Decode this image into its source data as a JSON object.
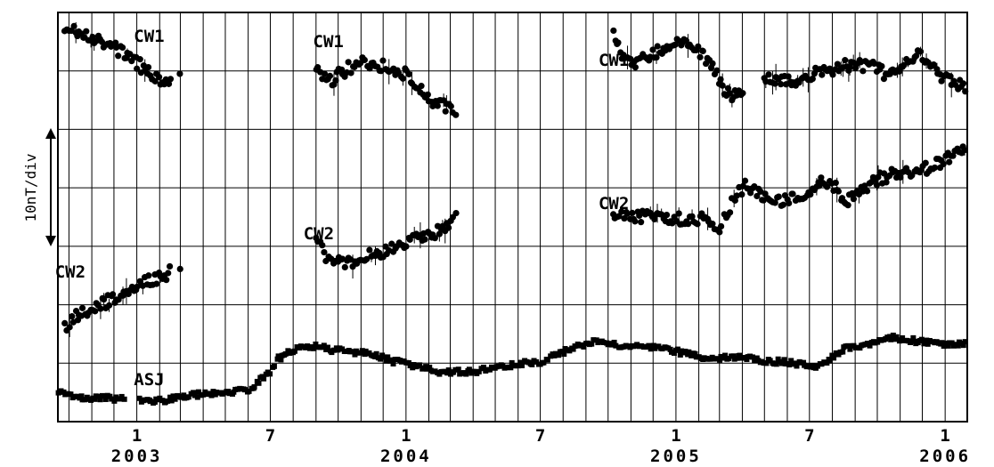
{
  "chart_data": {
    "type": "scatter",
    "ylabel": "10nT/div",
    "x_start": "2002-09-16",
    "x_end": "2006-01-31",
    "month_ticks": [
      {
        "label": "1",
        "year": "2003",
        "date": "2003-01-01"
      },
      {
        "label": "7",
        "year": "",
        "date": "2003-07-01"
      },
      {
        "label": "1",
        "year": "2004",
        "date": "2004-01-01"
      },
      {
        "label": "7",
        "year": "",
        "date": "2004-07-01"
      },
      {
        "label": "1",
        "year": "2005",
        "date": "2005-01-01"
      },
      {
        "label": "7",
        "year": "",
        "date": "2005-07-01"
      },
      {
        "label": "1",
        "year": "2006",
        "date": "2006-01-01"
      }
    ],
    "y_divisions": 7,
    "grid": true,
    "series": [
      {
        "name": "CW1",
        "segments": [
          [
            [
              "2002-09-26",
              29
            ],
            [
              "2002-10-10",
              34
            ],
            [
              "2002-10-25",
              38
            ],
            [
              "2002-11-10",
              45
            ],
            [
              "2002-11-25",
              50
            ],
            [
              "2002-12-10",
              57
            ],
            [
              "2002-12-25",
              66
            ],
            [
              "2003-01-10",
              77
            ],
            [
              "2003-01-25",
              85
            ],
            [
              "2003-02-05",
              91
            ],
            [
              "2003-02-15",
              93
            ]
          ],
          [
            [
              "2003-03-01",
              83
            ]
          ],
          [
            [
              "2003-09-01",
              72
            ],
            [
              "2003-09-15",
              94
            ],
            [
              "2003-09-30",
              86
            ],
            [
              "2003-10-15",
              76
            ],
            [
              "2003-11-01",
              72
            ],
            [
              "2003-11-15",
              70
            ],
            [
              "2003-12-01",
              74
            ],
            [
              "2003-12-15",
              78
            ],
            [
              "2003-12-30",
              84
            ],
            [
              "2004-01-15",
              96
            ],
            [
              "2004-01-30",
              110
            ],
            [
              "2004-02-15",
              117
            ],
            [
              "2004-02-28",
              122
            ],
            [
              "2004-03-08",
              126
            ]
          ],
          [
            [
              "2004-10-08",
              36
            ],
            [
              "2004-10-20",
              66
            ],
            [
              "2004-11-05",
              76
            ],
            [
              "2004-11-20",
              62
            ],
            [
              "2004-12-05",
              60
            ],
            [
              "2004-12-20",
              52
            ],
            [
              "2005-01-05",
              48
            ],
            [
              "2005-01-20",
              53
            ],
            [
              "2005-02-05",
              60
            ],
            [
              "2005-02-20",
              78
            ],
            [
              "2005-03-05",
              97
            ],
            [
              "2005-03-20",
              110
            ],
            [
              "2005-04-01",
              98
            ]
          ],
          [
            [
              "2005-05-01",
              86
            ],
            [
              "2005-05-20",
              92
            ],
            [
              "2005-06-10",
              90
            ],
            [
              "2005-06-30",
              85
            ],
            [
              "2005-07-20",
              80
            ],
            [
              "2005-08-10",
              76
            ],
            [
              "2005-08-30",
              72
            ],
            [
              "2005-09-20",
              74
            ],
            [
              "2005-10-10",
              82
            ],
            [
              "2005-10-30",
              78
            ],
            [
              "2005-11-15",
              68
            ],
            [
              "2005-12-01",
              61
            ],
            [
              "2005-12-20",
              82
            ],
            [
              "2006-01-10",
              94
            ],
            [
              "2006-01-28",
              98
            ]
          ]
        ]
      },
      {
        "name": "CW2",
        "segments": [
          [
            [
              "2002-09-26",
              368
            ],
            [
              "2002-10-10",
              356
            ],
            [
              "2002-10-25",
              350
            ],
            [
              "2002-11-10",
              345
            ],
            [
              "2002-11-25",
              337
            ],
            [
              "2002-12-10",
              330
            ],
            [
              "2002-12-25",
              325
            ],
            [
              "2003-01-10",
              319
            ],
            [
              "2003-01-25",
              313
            ],
            [
              "2003-02-05",
              310
            ],
            [
              "2003-02-15",
              306
            ]
          ],
          [
            [
              "2003-03-01",
              304
            ]
          ],
          [
            [
              "2003-09-01",
              262
            ],
            [
              "2003-09-15",
              289
            ],
            [
              "2003-09-30",
              295
            ],
            [
              "2003-10-15",
              294
            ],
            [
              "2003-11-01",
              291
            ],
            [
              "2003-11-15",
              287
            ],
            [
              "2003-12-01",
              283
            ],
            [
              "2003-12-15",
              279
            ],
            [
              "2003-12-30",
              273
            ],
            [
              "2004-01-15",
              270
            ],
            [
              "2004-01-30",
              265
            ],
            [
              "2004-02-15",
              260
            ],
            [
              "2004-02-28",
              252
            ],
            [
              "2004-03-08",
              245
            ]
          ],
          [
            [
              "2004-10-08",
              239
            ],
            [
              "2004-10-25",
              241
            ],
            [
              "2004-11-15",
              243
            ],
            [
              "2004-12-05",
              245
            ],
            [
              "2004-12-25",
              246
            ],
            [
              "2005-01-15",
              247
            ],
            [
              "2005-02-05",
              245
            ],
            [
              "2005-02-20",
              249
            ],
            [
              "2005-03-01",
              258
            ],
            [
              "2005-03-10",
              239
            ],
            [
              "2005-03-20",
              225
            ],
            [
              "2005-04-05",
              209
            ],
            [
              "2005-04-25",
              217
            ],
            [
              "2005-05-15",
              226
            ],
            [
              "2005-06-01",
              225
            ],
            [
              "2005-06-20",
              218
            ],
            [
              "2005-07-05",
              212
            ],
            [
              "2005-07-20",
              205
            ],
            [
              "2005-08-05",
              212
            ],
            [
              "2005-08-20",
              225
            ],
            [
              "2005-09-01",
              222
            ],
            [
              "2005-09-20",
              207
            ],
            [
              "2005-10-10",
              199
            ],
            [
              "2005-10-30",
              195
            ],
            [
              "2005-11-20",
              192
            ],
            [
              "2005-12-10",
              188
            ],
            [
              "2005-12-30",
              181
            ],
            [
              "2006-01-15",
              174
            ],
            [
              "2006-01-28",
              165
            ]
          ]
        ]
      },
      {
        "name": "ASJ",
        "segments": [
          [
            [
              "2002-09-16",
              440
            ],
            [
              "2002-10-01",
              444
            ],
            [
              "2002-10-20",
              447
            ],
            [
              "2002-11-10",
              447
            ],
            [
              "2002-12-01",
              448
            ],
            [
              "2002-12-15",
              449
            ]
          ],
          [
            [
              "2003-01-05",
              449
            ],
            [
              "2003-01-25",
              451
            ],
            [
              "2003-02-15",
              449
            ],
            [
              "2003-03-10",
              445
            ],
            [
              "2003-04-01",
              443
            ],
            [
              "2003-04-25",
              441
            ],
            [
              "2003-05-15",
              440
            ],
            [
              "2003-06-05",
              437
            ],
            [
              "2003-06-20",
              425
            ],
            [
              "2003-07-01",
              420
            ],
            [
              "2003-07-10",
              405
            ],
            [
              "2003-07-20",
              398
            ],
            [
              "2003-08-01",
              394
            ],
            [
              "2003-08-15",
              391
            ],
            [
              "2003-09-01",
              389
            ],
            [
              "2003-09-20",
              393
            ],
            [
              "2003-10-15",
              395
            ],
            [
              "2003-11-05",
              397
            ],
            [
              "2003-11-25",
              401
            ],
            [
              "2003-12-15",
              406
            ],
            [
              "2004-01-01",
              409
            ],
            [
              "2004-01-15",
              412
            ],
            [
              "2004-01-30",
              413
            ],
            [
              "2004-02-15",
              418
            ],
            [
              "2004-03-01",
              418
            ],
            [
              "2004-04-01",
              418
            ],
            [
              "2004-05-01",
              413
            ],
            [
              "2004-06-01",
              409
            ],
            [
              "2004-07-01",
              407
            ],
            [
              "2004-07-20",
              399
            ],
            [
              "2004-08-15",
              392
            ],
            [
              "2004-09-01",
              386
            ],
            [
              "2004-09-20",
              384
            ],
            [
              "2004-10-15",
              389
            ],
            [
              "2004-11-10",
              390
            ],
            [
              "2004-12-01",
              391
            ],
            [
              "2005-01-01",
              395
            ],
            [
              "2005-02-01",
              401
            ],
            [
              "2005-03-01",
              403
            ],
            [
              "2005-04-01",
              400
            ],
            [
              "2005-05-01",
              406
            ],
            [
              "2005-06-01",
              407
            ],
            [
              "2005-06-20",
              410
            ],
            [
              "2005-07-10",
              411
            ],
            [
              "2005-08-01",
              402
            ],
            [
              "2005-08-20",
              391
            ],
            [
              "2005-09-10",
              388
            ],
            [
              "2005-10-01",
              384
            ],
            [
              "2005-10-20",
              379
            ],
            [
              "2005-11-10",
              382
            ],
            [
              "2005-12-01",
              384
            ],
            [
              "2005-12-20",
              386
            ],
            [
              "2006-01-05",
              388
            ],
            [
              "2006-01-28",
              387
            ]
          ]
        ]
      }
    ],
    "annotations": [
      {
        "text": "CW1",
        "date": "2002-12-28",
        "y": 40,
        "series": "CW1"
      },
      {
        "text": "CW1",
        "date": "2003-08-28",
        "y": 46,
        "series": "CW1"
      },
      {
        "text": "CW1",
        "date": "2004-09-18",
        "y": 67,
        "series": "CW1"
      },
      {
        "text": "CW2",
        "date": "2002-09-12",
        "y": 305,
        "series": "CW2"
      },
      {
        "text": "CW2",
        "date": "2003-08-15",
        "y": 262,
        "series": "CW2"
      },
      {
        "text": "CW2",
        "date": "2004-09-18",
        "y": 228,
        "series": "CW2"
      },
      {
        "text": "ASJ",
        "date": "2002-12-28",
        "y": 426,
        "series": "ASJ"
      }
    ]
  }
}
